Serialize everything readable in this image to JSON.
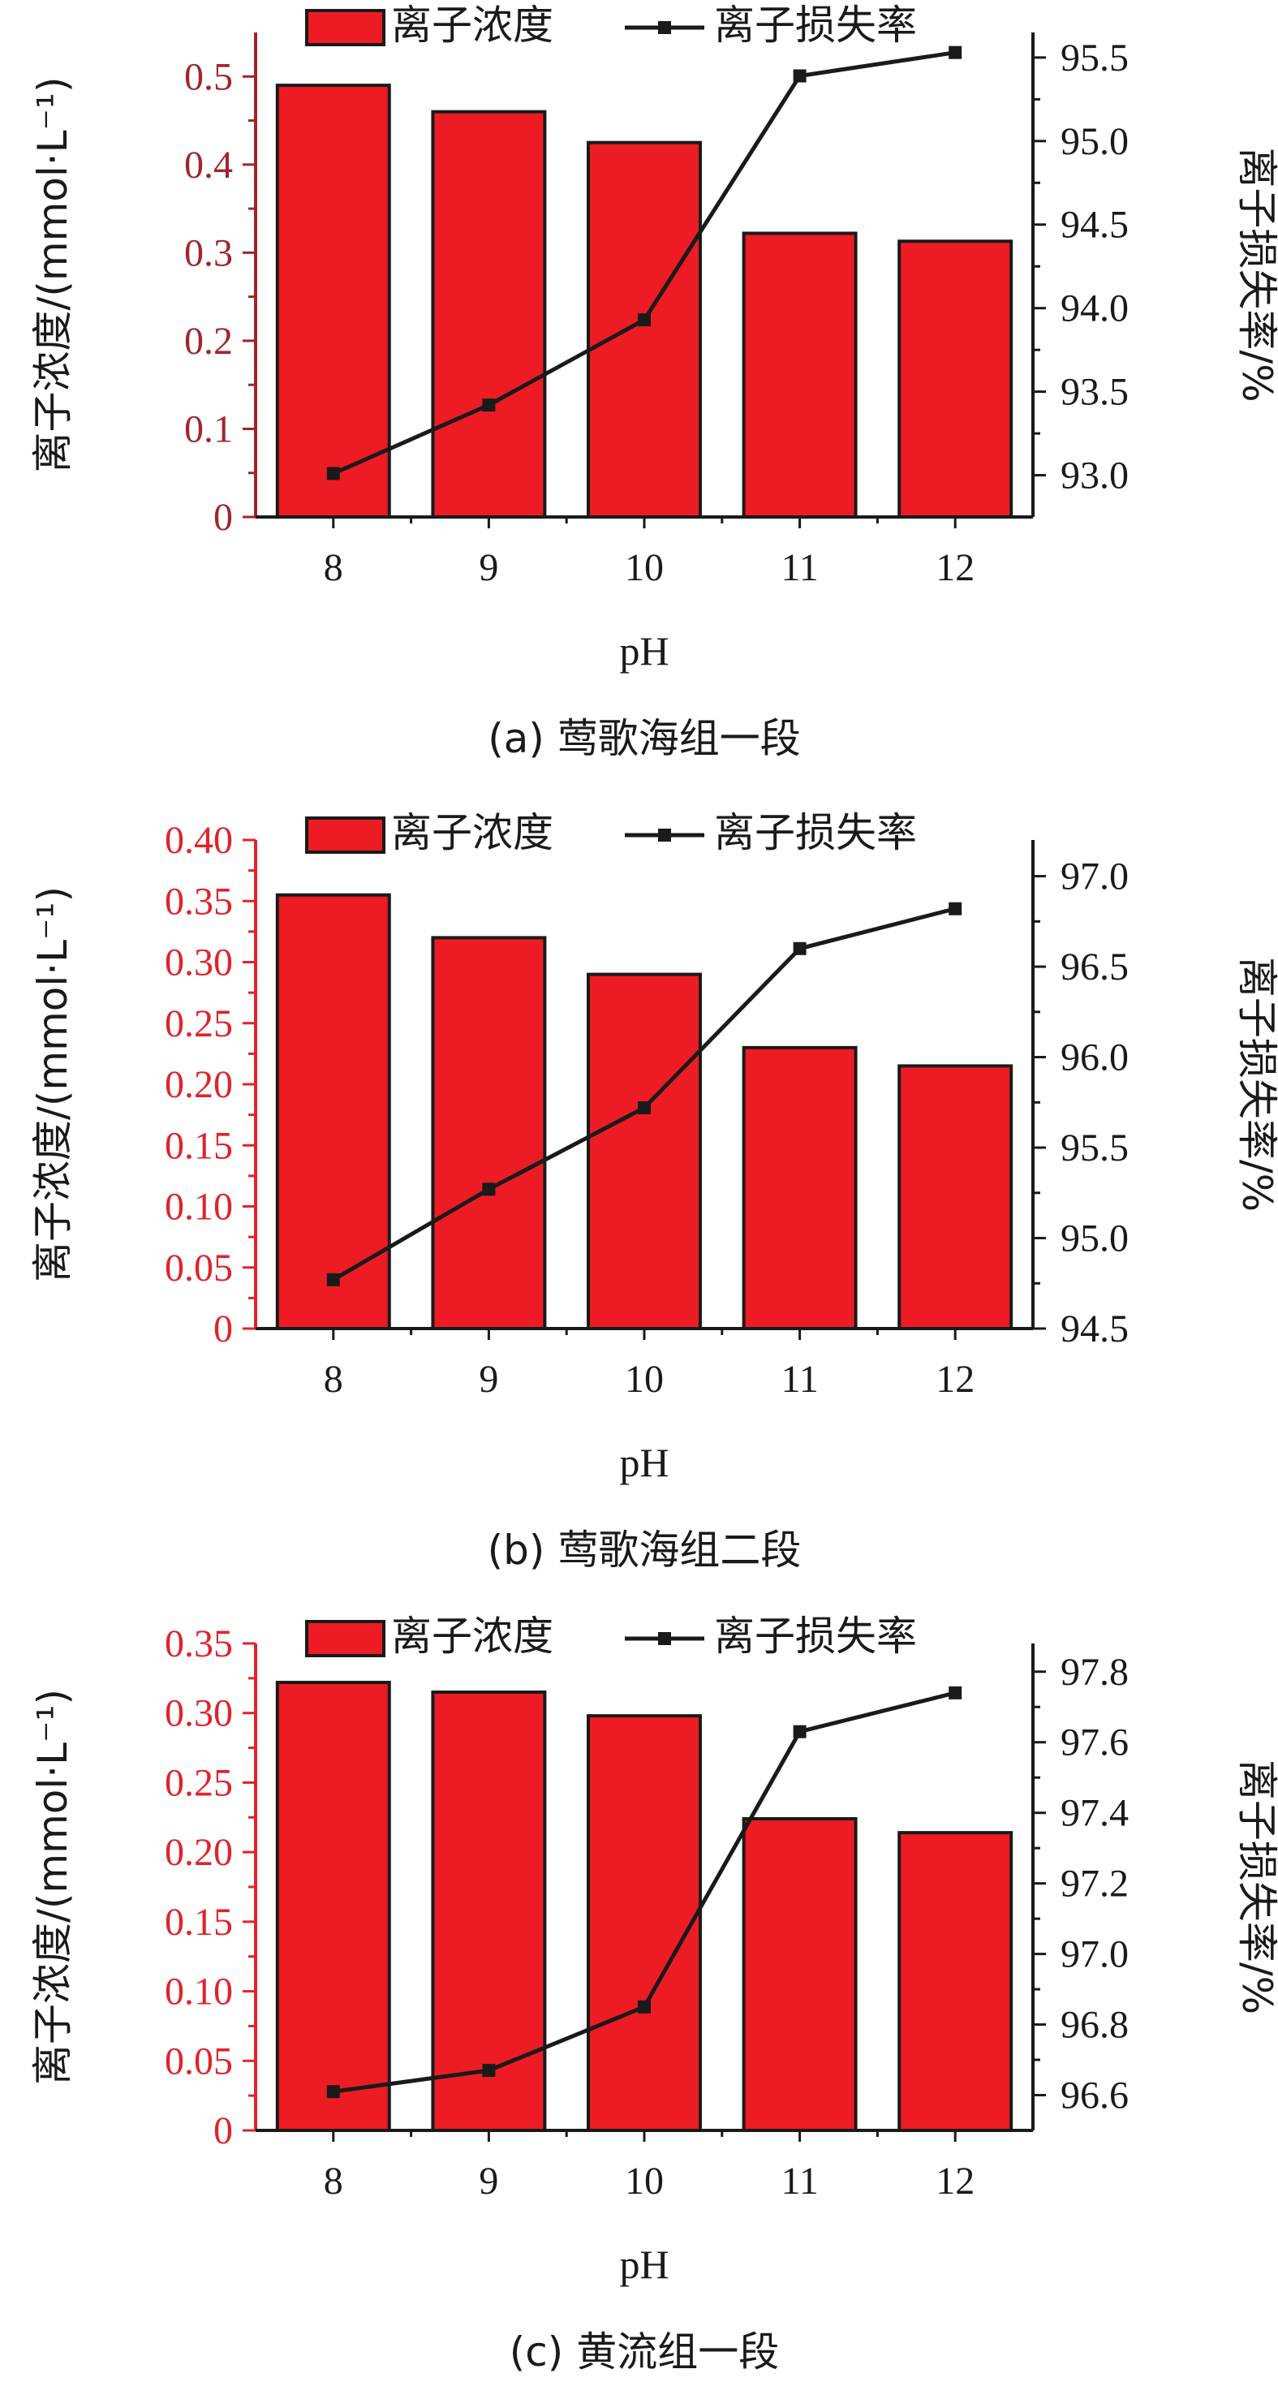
{
  "colors": {
    "bar_fill": "#ed1c24",
    "bar_stroke": "#1a1a1a",
    "line": "#1a1a1a",
    "left_axis": "#a0252b",
    "left_axis_bright": "#e0232b",
    "right_axis": "#1a1a1a"
  },
  "legend": {
    "bar_label": "离子浓度",
    "line_label": "离子损失率"
  },
  "chart_data": [
    {
      "type": "bar",
      "caption": "(a) 莺歌海组一段",
      "xlabel": "pH",
      "ylabel": "离子浓度/(mmol·L⁻¹)",
      "y2label": "离子损失率/%",
      "categories": [
        "8",
        "9",
        "10",
        "11",
        "12"
      ],
      "series": [
        {
          "name": "离子浓度",
          "type": "bar",
          "axis": "left",
          "values": [
            0.49,
            0.46,
            0.425,
            0.322,
            0.313
          ]
        },
        {
          "name": "离子损失率",
          "type": "line",
          "axis": "right",
          "values": [
            93.01,
            93.42,
            93.93,
            95.39,
            95.53
          ]
        }
      ],
      "ylim": [
        0,
        0.55
      ],
      "yticks": [
        "0",
        "0.1",
        "0.2",
        "0.3",
        "0.4",
        "0.5"
      ],
      "y2lim": [
        92.75,
        95.65
      ],
      "y2ticks": [
        "93.0",
        "93.5",
        "94.0",
        "94.5",
        "95.0",
        "95.5"
      ],
      "left_axis_color": "left_axis",
      "legend_position": "top"
    },
    {
      "type": "bar",
      "caption": "(b) 莺歌海组二段",
      "xlabel": "pH",
      "ylabel": "离子浓度/(mmol·L⁻¹)",
      "y2label": "离子损失率/%",
      "categories": [
        "8",
        "9",
        "10",
        "11",
        "12"
      ],
      "series": [
        {
          "name": "离子浓度",
          "type": "bar",
          "axis": "left",
          "values": [
            0.355,
            0.32,
            0.29,
            0.23,
            0.215
          ]
        },
        {
          "name": "离子损失率",
          "type": "line",
          "axis": "right",
          "values": [
            94.77,
            95.27,
            95.72,
            96.6,
            96.82
          ]
        }
      ],
      "ylim": [
        0,
        0.4
      ],
      "yticks": [
        "0",
        "0.05",
        "0.10",
        "0.15",
        "0.20",
        "0.25",
        "0.30",
        "0.35",
        "0.40"
      ],
      "y2lim": [
        94.5,
        97.2
      ],
      "y2ticks": [
        "94.5",
        "95.0",
        "95.5",
        "96.0",
        "96.5",
        "97.0"
      ],
      "left_axis_color": "left_axis_bright",
      "legend_position": "top"
    },
    {
      "type": "bar",
      "caption": "(c) 黄流组一段",
      "xlabel": "pH",
      "ylabel": "离子浓度/(mmol·L⁻¹)",
      "y2label": "离子损失率/%",
      "categories": [
        "8",
        "9",
        "10",
        "11",
        "12"
      ],
      "series": [
        {
          "name": "离子浓度",
          "type": "bar",
          "axis": "left",
          "values": [
            0.322,
            0.315,
            0.298,
            0.224,
            0.214
          ]
        },
        {
          "name": "离子损失率",
          "type": "line",
          "axis": "right",
          "values": [
            96.61,
            96.67,
            96.85,
            97.63,
            97.74
          ]
        }
      ],
      "ylim": [
        0,
        0.35
      ],
      "yticks": [
        "0",
        "0.05",
        "0.10",
        "0.15",
        "0.20",
        "0.25",
        "0.30",
        "0.35"
      ],
      "y2lim": [
        96.5,
        97.88
      ],
      "y2ticks": [
        "96.6",
        "96.8",
        "97.0",
        "97.2",
        "97.4",
        "97.6",
        "97.8"
      ],
      "left_axis_color": "left_axis_bright",
      "legend_position": "top"
    }
  ]
}
